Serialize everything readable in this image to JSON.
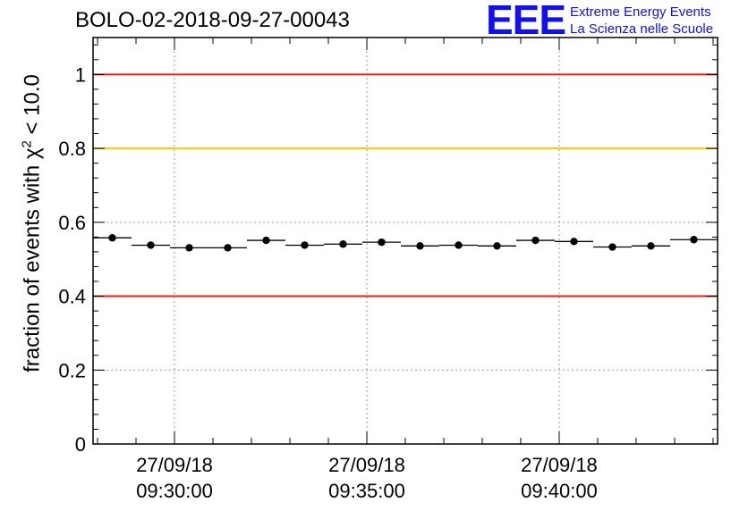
{
  "title": "BOLO-02-2018-09-27-00043",
  "logo": {
    "letters": "EEE",
    "line1": "Extreme Energy Events",
    "line2": "La Scienza nelle Scuole"
  },
  "colors": {
    "red_threshold": "#e8211a",
    "yellow_threshold": "#ffc800",
    "logo_blue": "#1010f0"
  },
  "chart_data": {
    "type": "scatter",
    "title": "BOLO-02-2018-09-27-00043",
    "ylabel_prefix": "fraction of events with ",
    "ylabel_chi": "χ",
    "ylabel_sup": "2",
    "ylabel_suffix": " < 10.0",
    "xlabel": "",
    "ylim": [
      0,
      1.1
    ],
    "yticks": [
      0,
      0.2,
      0.4,
      0.6,
      0.8,
      1
    ],
    "yticklabels": [
      "0",
      "0.2",
      "0.4",
      "0.6",
      "0.8",
      "1"
    ],
    "xrange": [
      "27/09/18 09:27:53",
      "27/09/18 09:44:07"
    ],
    "xticks": [
      {
        "time": "27/09/18 09:30:00",
        "date": "27/09/18",
        "clock": "09:30:00"
      },
      {
        "time": "27/09/18 09:35:00",
        "date": "27/09/18",
        "clock": "09:35:00"
      },
      {
        "time": "27/09/18 09:40:00",
        "date": "27/09/18",
        "clock": "09:40:00"
      }
    ],
    "grid": true,
    "reference_lines": [
      {
        "y": 1.0,
        "color": "#e8211a"
      },
      {
        "y": 0.8,
        "color": "#ffc800"
      },
      {
        "y": 0.4,
        "color": "#e8211a"
      }
    ],
    "series": [
      {
        "x": [
          "27/09/18 09:27:53",
          "27/09/18 09:28:53",
          "27/09/18 09:29:53",
          "27/09/18 09:30:53",
          "27/09/18 09:31:53",
          "27/09/18 09:32:53",
          "27/09/18 09:33:53",
          "27/09/18 09:34:53",
          "27/09/18 09:35:53",
          "27/09/18 09:36:53",
          "27/09/18 09:37:53",
          "27/09/18 09:38:53",
          "27/09/18 09:39:53",
          "27/09/18 09:40:53",
          "27/09/18 09:41:53",
          "27/09/18 09:42:53"
        ],
        "x_end": "27/09/18 09:44:07",
        "values": [
          0.558,
          0.538,
          0.531,
          0.531,
          0.551,
          0.538,
          0.541,
          0.546,
          0.536,
          0.538,
          0.536,
          0.551,
          0.548,
          0.533,
          0.536,
          0.553
        ]
      }
    ]
  }
}
